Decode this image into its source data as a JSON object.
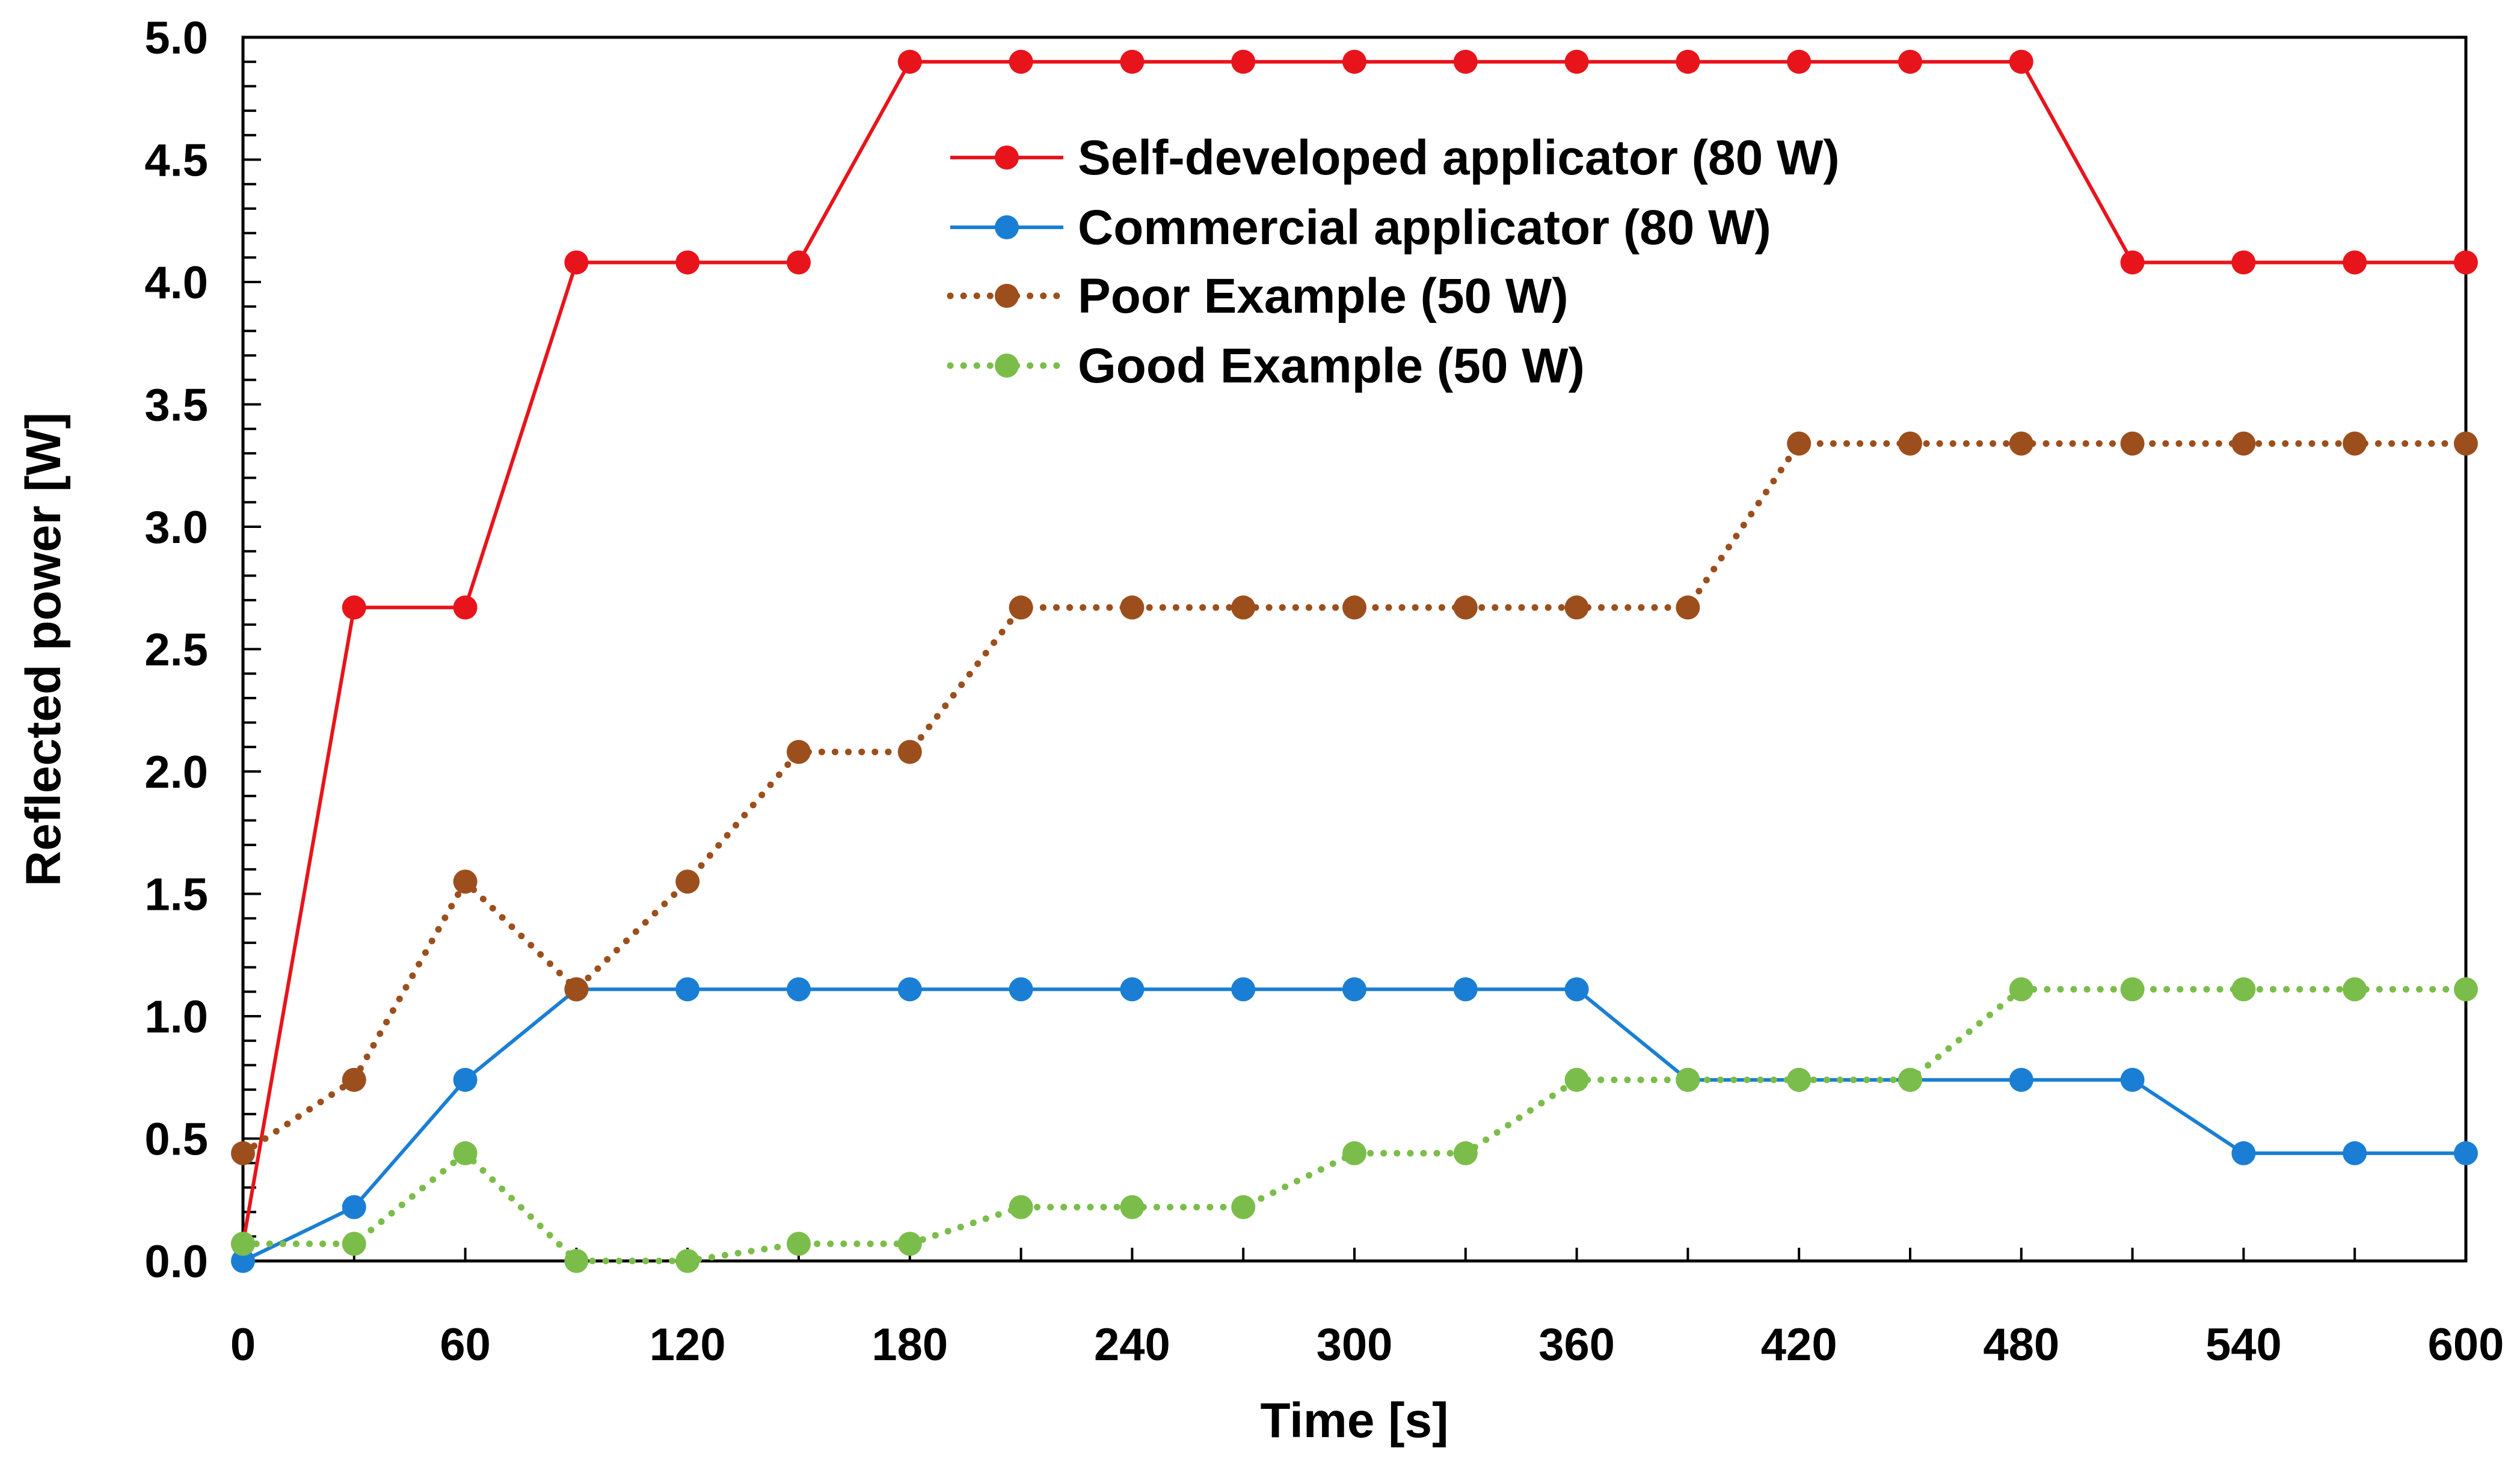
{
  "chart_data": {
    "type": "line",
    "title": "",
    "xlabel": "Time [s]",
    "ylabel": "Reflected power [W]",
    "xlim": [
      0,
      600
    ],
    "ylim": [
      0,
      5
    ],
    "x_ticks": [
      0,
      60,
      120,
      180,
      240,
      300,
      360,
      420,
      480,
      540,
      600
    ],
    "x_tick_labels": [
      "0",
      "60",
      "120",
      "180",
      "240",
      "300",
      "360",
      "420",
      "480",
      "540",
      "600"
    ],
    "y_ticks": [
      0,
      0.5,
      1,
      1.5,
      2,
      2.5,
      3,
      3.5,
      4,
      4.5,
      5
    ],
    "y_tick_labels": [
      "0.0",
      "0.5",
      "1.0",
      "1.5",
      "2.0",
      "2.5",
      "3.0",
      "3.5",
      "4.0",
      "4.5",
      "5.0"
    ],
    "grid": false,
    "legend_position": "top-center",
    "x": [
      0,
      30,
      60,
      90,
      120,
      150,
      180,
      210,
      240,
      270,
      300,
      330,
      360,
      390,
      420,
      450,
      480,
      510,
      540,
      570,
      600
    ],
    "series": [
      {
        "name": "Self-developed applicator (80 W)",
        "color": "#e8141b",
        "style": "solid",
        "values": [
          0.07,
          2.67,
          2.67,
          4.08,
          4.08,
          4.08,
          4.9,
          4.9,
          4.9,
          4.9,
          4.9,
          4.9,
          4.9,
          4.9,
          4.9,
          4.9,
          4.9,
          4.08,
          4.08,
          4.08,
          4.08
        ]
      },
      {
        "name": "Commercial applicator (80 W)",
        "color": "#1a7fd4",
        "style": "solid",
        "values": [
          0.0,
          0.22,
          0.74,
          1.11,
          1.11,
          1.11,
          1.11,
          1.11,
          1.11,
          1.11,
          1.11,
          1.11,
          1.11,
          0.74,
          0.74,
          0.74,
          0.74,
          0.74,
          0.44,
          0.44,
          0.44
        ]
      },
      {
        "name": "Poor Example (50 W)",
        "color": "#9c4f1c",
        "style": "dotted",
        "values": [
          0.44,
          0.74,
          1.55,
          1.11,
          1.55,
          2.08,
          2.08,
          2.67,
          2.67,
          2.67,
          2.67,
          2.67,
          2.67,
          2.67,
          3.34,
          3.34,
          3.34,
          3.34,
          3.34,
          3.34,
          3.34
        ]
      },
      {
        "name": "Good Example (50 W)",
        "color": "#7bbd4a",
        "style": "dotted",
        "values": [
          0.07,
          0.07,
          0.44,
          0.0,
          0.0,
          0.07,
          0.07,
          0.22,
          0.22,
          0.22,
          0.44,
          0.44,
          0.74,
          0.74,
          0.74,
          0.74,
          1.11,
          1.11,
          1.11,
          1.11,
          1.11
        ]
      }
    ]
  }
}
